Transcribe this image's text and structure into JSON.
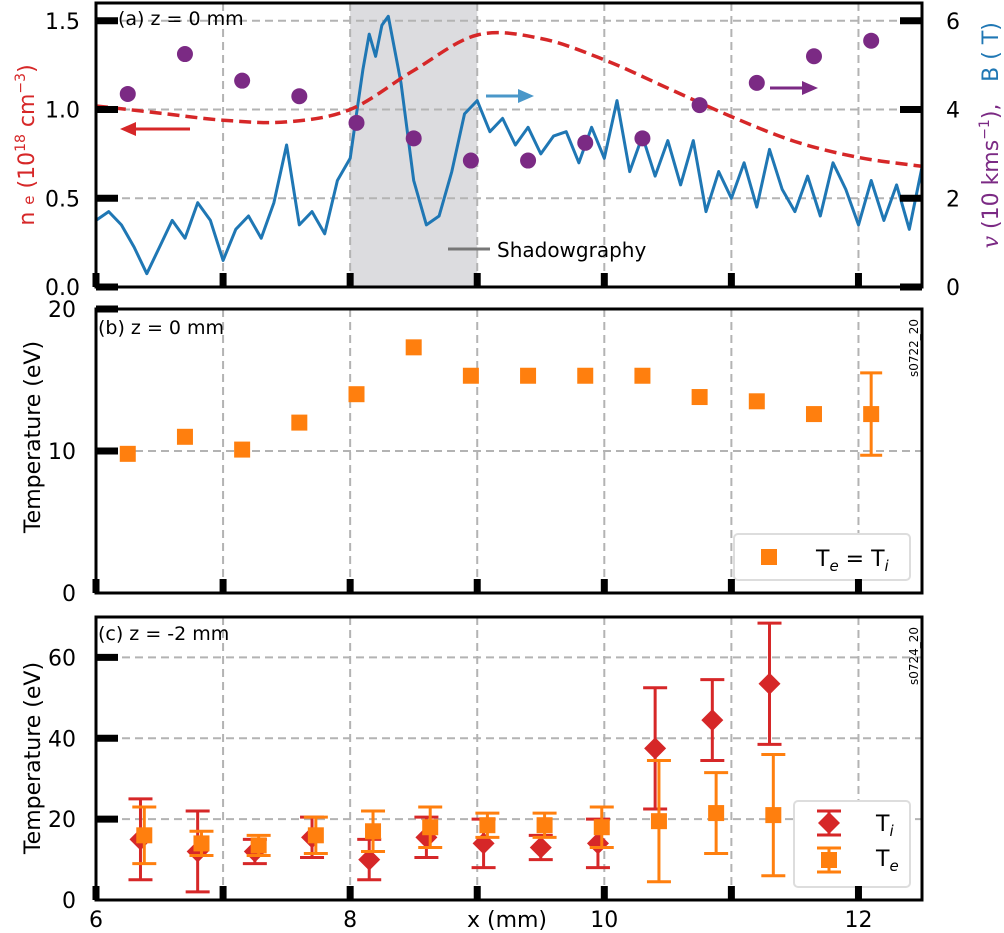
{
  "chart_data": [
    {
      "id": "a",
      "type": "line",
      "panel_label": "(a) z = 0 mm",
      "xlim": [
        6,
        12.5
      ],
      "ylim": [
        0,
        1.6
      ],
      "y2lim": [
        0,
        6.4
      ],
      "yticks": [
        "0.0",
        "0.5",
        "1.0",
        "1.5"
      ],
      "y2ticks": [
        "0",
        "2",
        "4",
        "6"
      ],
      "ylabel_main": "n",
      "ylabel_sub": "e",
      "ylabel_tail": "(10",
      "ylabel_exp": "18",
      "ylabel_unit": " cm",
      "ylabel_unit_exp": "−3",
      "ylabel_close": ")",
      "y2label_v_sym": "v",
      "y2label_v_text": "(10 kms",
      "y2label_v_exp": "−1",
      "y2label_v_close": "),",
      "y2label_b": "B ( T)",
      "colors": {
        "density": "#d62728",
        "velocity": "#7b2a84",
        "field": "#1f77b4",
        "shade": "#dcdcdf",
        "arrow_field": "#4a97c9"
      },
      "shadow_region": [
        8.0,
        9.0
      ],
      "shadow_label": "Shadowgraphy",
      "density_x": [
        6.0,
        6.5,
        7.0,
        7.5,
        8.0,
        8.5,
        9.0,
        9.5,
        10.0,
        10.5,
        11.0,
        11.5,
        12.0,
        12.5
      ],
      "density_y": [
        1.02,
        0.98,
        0.94,
        0.93,
        1.0,
        1.22,
        1.42,
        1.4,
        1.28,
        1.12,
        0.96,
        0.82,
        0.73,
        0.68
      ],
      "velocity_x": [
        6.25,
        6.7,
        7.15,
        7.6,
        8.05,
        8.5,
        8.95,
        9.4,
        9.85,
        10.3,
        10.75,
        11.2,
        11.65,
        12.1
      ],
      "velocity_y": [
        4.35,
        5.25,
        4.65,
        4.3,
        3.7,
        3.35,
        2.85,
        2.85,
        3.25,
        3.35,
        4.1,
        4.6,
        5.2,
        5.55
      ],
      "field_x": [
        6.0,
        6.1,
        6.2,
        6.3,
        6.4,
        6.5,
        6.6,
        6.7,
        6.8,
        6.9,
        7.0,
        7.1,
        7.2,
        7.3,
        7.4,
        7.5,
        7.6,
        7.7,
        7.8,
        7.9,
        8.0,
        8.05,
        8.1,
        8.15,
        8.2,
        8.25,
        8.3,
        8.4,
        8.5,
        8.6,
        8.7,
        8.8,
        8.9,
        9.0,
        9.1,
        9.2,
        9.3,
        9.4,
        9.5,
        9.6,
        9.7,
        9.8,
        9.9,
        10.0,
        10.1,
        10.2,
        10.3,
        10.4,
        10.5,
        10.6,
        10.7,
        10.8,
        10.9,
        11.0,
        11.1,
        11.2,
        11.3,
        11.4,
        11.5,
        11.6,
        11.7,
        11.8,
        11.9,
        12.0,
        12.1,
        12.2,
        12.3,
        12.4,
        12.5
      ],
      "field_y": [
        1.5,
        1.7,
        1.4,
        0.9,
        0.3,
        0.9,
        1.5,
        1.1,
        1.9,
        1.5,
        0.6,
        1.3,
        1.6,
        1.1,
        1.9,
        3.2,
        1.4,
        1.7,
        1.2,
        2.4,
        2.9,
        3.9,
        4.9,
        5.7,
        5.2,
        5.9,
        6.1,
        4.6,
        2.4,
        1.4,
        1.6,
        2.6,
        3.9,
        4.2,
        3.5,
        3.8,
        3.2,
        3.6,
        3.0,
        3.4,
        3.5,
        2.8,
        3.6,
        2.9,
        4.2,
        2.6,
        3.4,
        2.5,
        3.3,
        2.3,
        3.3,
        1.7,
        2.6,
        2.0,
        2.8,
        1.8,
        3.1,
        2.2,
        1.7,
        2.5,
        1.6,
        2.8,
        2.2,
        1.4,
        2.4,
        1.5,
        2.3,
        1.3,
        2.7
      ],
      "density_arrow_text": "←",
      "field_arrow_text": "→",
      "velocity_arrow_text": "→"
    },
    {
      "id": "b",
      "type": "scatter",
      "panel_label": "(b) z = 0 mm",
      "shot_id": "s0722_20",
      "xlim": [
        6,
        12.5
      ],
      "ylim": [
        0,
        20
      ],
      "yticks": [
        "0",
        "10",
        "20"
      ],
      "ylabel": "Temperature (eV)",
      "series": [
        {
          "name": "Te = Ti",
          "legend_main": "T",
          "legend_sub": "e",
          "legend_mid": " =  T",
          "legend_sub2": "i",
          "color": "#ff7f0e",
          "x": [
            6.25,
            6.7,
            7.15,
            7.6,
            8.05,
            8.5,
            8.95,
            9.4,
            9.85,
            10.3,
            10.75,
            11.2,
            11.65,
            12.1
          ],
          "y": [
            9.8,
            11.0,
            10.1,
            12.0,
            14.0,
            17.3,
            15.3,
            15.3,
            15.3,
            15.3,
            13.8,
            13.5,
            12.6,
            12.6
          ],
          "err": [
            0,
            0,
            0,
            0,
            0,
            0,
            0,
            0,
            0,
            0,
            0,
            0,
            0,
            2.9
          ]
        }
      ]
    },
    {
      "id": "c",
      "type": "scatter",
      "panel_label": "(c) z = -2 mm",
      "shot_id": "s0724_20",
      "xlim": [
        6,
        12.5
      ],
      "ylim": [
        0,
        70
      ],
      "yticks": [
        "0",
        "20",
        "40",
        "60"
      ],
      "xticks": [
        "6",
        "8",
        "10",
        "12"
      ],
      "ylabel": "Temperature (eV)",
      "xlabel": "x (mm)",
      "series": [
        {
          "name": "Ti",
          "legend_main": "T",
          "legend_sub": "i",
          "color": "#d62728",
          "x": [
            6.35,
            6.8,
            7.25,
            7.7,
            8.15,
            8.6,
            9.05,
            9.5,
            9.95,
            10.4,
            10.85,
            11.3
          ],
          "y": [
            15,
            12,
            12,
            15.5,
            10,
            15.5,
            14,
            13,
            14,
            37.5,
            44.5,
            53.5
          ],
          "err": [
            10,
            10,
            3,
            5,
            5,
            5,
            6,
            3,
            6,
            15,
            10,
            15
          ]
        },
        {
          "name": "Te",
          "legend_main": "T",
          "legend_sub": "e",
          "color": "#ff7f0e",
          "x": [
            6.38,
            6.83,
            7.28,
            7.73,
            8.18,
            8.63,
            9.08,
            9.53,
            9.98,
            10.43,
            10.88,
            11.33
          ],
          "y": [
            16,
            14,
            13.5,
            16,
            17,
            18,
            18.5,
            18.5,
            18,
            19.5,
            21.5,
            21
          ],
          "err": [
            7,
            3,
            2.5,
            4.5,
            5,
            5,
            3,
            3,
            5,
            15,
            10,
            15
          ]
        }
      ]
    }
  ]
}
